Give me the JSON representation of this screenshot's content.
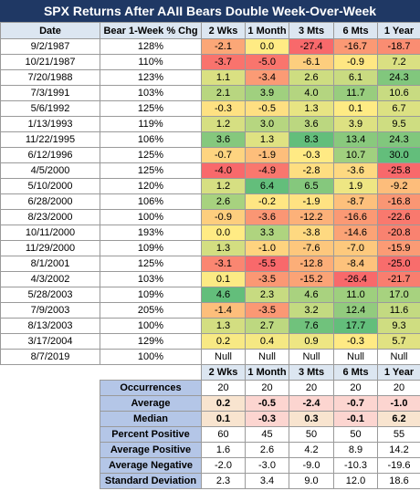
{
  "title": "SPX Returns After AAII Bears Double Week-Over-Week",
  "chart_data": {
    "type": "table",
    "title": "SPX Returns After AAII Bears Double Week-Over-Week",
    "columns": [
      "Date",
      "Bear 1-Week % Chg",
      "2 Wks",
      "1 Month",
      "3 Mts",
      "6 Mts",
      "1 Year"
    ],
    "rows": [
      {
        "date": "9/2/1987",
        "pct": "128%",
        "values": [
          "-2.1",
          "0.0",
          "-27.4",
          "-16.7",
          "-18.7"
        ]
      },
      {
        "date": "10/21/1987",
        "pct": "110%",
        "values": [
          "-3.7",
          "-5.0",
          "-6.1",
          "-0.9",
          "7.2"
        ]
      },
      {
        "date": "7/20/1988",
        "pct": "123%",
        "values": [
          "1.1",
          "-3.4",
          "2.6",
          "6.1",
          "24.3"
        ]
      },
      {
        "date": "7/3/1991",
        "pct": "103%",
        "values": [
          "2.1",
          "3.9",
          "4.0",
          "11.7",
          "10.6"
        ]
      },
      {
        "date": "5/6/1992",
        "pct": "125%",
        "values": [
          "-0.3",
          "-0.5",
          "1.3",
          "0.1",
          "6.7"
        ]
      },
      {
        "date": "1/13/1993",
        "pct": "119%",
        "values": [
          "1.2",
          "3.0",
          "3.6",
          "3.9",
          "9.5"
        ]
      },
      {
        "date": "11/22/1995",
        "pct": "106%",
        "values": [
          "3.6",
          "1.3",
          "8.3",
          "13.4",
          "24.3"
        ]
      },
      {
        "date": "6/12/1996",
        "pct": "125%",
        "values": [
          "-0.7",
          "-1.9",
          "-0.3",
          "10.7",
          "30.0"
        ]
      },
      {
        "date": "4/5/2000",
        "pct": "125%",
        "values": [
          "-4.0",
          "-4.9",
          "-2.8",
          "-3.6",
          "-25.8"
        ]
      },
      {
        "date": "5/10/2000",
        "pct": "120%",
        "values": [
          "1.2",
          "6.4",
          "6.5",
          "1.9",
          "-9.2"
        ]
      },
      {
        "date": "6/28/2000",
        "pct": "106%",
        "values": [
          "2.6",
          "-0.2",
          "-1.9",
          "-8.7",
          "-16.8"
        ]
      },
      {
        "date": "8/23/2000",
        "pct": "100%",
        "values": [
          "-0.9",
          "-3.6",
          "-12.2",
          "-16.6",
          "-22.6"
        ]
      },
      {
        "date": "10/11/2000",
        "pct": "193%",
        "values": [
          "0.0",
          "3.3",
          "-3.8",
          "-14.6",
          "-20.8"
        ]
      },
      {
        "date": "11/29/2000",
        "pct": "109%",
        "values": [
          "1.3",
          "-1.0",
          "-7.6",
          "-7.0",
          "-15.9"
        ]
      },
      {
        "date": "8/1/2001",
        "pct": "125%",
        "values": [
          "-3.1",
          "-5.5",
          "-12.8",
          "-8.4",
          "-25.0"
        ]
      },
      {
        "date": "4/3/2002",
        "pct": "103%",
        "values": [
          "0.1",
          "-3.5",
          "-15.2",
          "-26.4",
          "-21.7"
        ]
      },
      {
        "date": "5/28/2003",
        "pct": "109%",
        "values": [
          "4.6",
          "2.3",
          "4.6",
          "11.0",
          "17.0"
        ]
      },
      {
        "date": "7/9/2003",
        "pct": "205%",
        "values": [
          "-1.4",
          "-3.5",
          "3.2",
          "12.4",
          "11.6"
        ]
      },
      {
        "date": "8/13/2003",
        "pct": "100%",
        "values": [
          "1.3",
          "2.7",
          "7.6",
          "17.7",
          "9.3"
        ]
      },
      {
        "date": "3/17/2004",
        "pct": "129%",
        "values": [
          "0.2",
          "0.4",
          "0.9",
          "-0.3",
          "5.7"
        ]
      },
      {
        "date": "8/7/2019",
        "pct": "100%",
        "values": [
          "Null",
          "Null",
          "Null",
          "Null",
          "Null"
        ]
      }
    ],
    "summary_headers": [
      "2 Wks",
      "1 Month",
      "3 Mts",
      "6 Mts",
      "1 Year"
    ],
    "summary": [
      {
        "label": "Occurrences",
        "values": [
          "20",
          "20",
          "20",
          "20",
          "20"
        ],
        "bold": false,
        "colored": false
      },
      {
        "label": "Average",
        "values": [
          "0.2",
          "-0.5",
          "-2.4",
          "-0.7",
          "-1.0"
        ],
        "bold": true,
        "colored": true
      },
      {
        "label": "Median",
        "values": [
          "0.1",
          "-0.3",
          "0.3",
          "-0.1",
          "6.2"
        ],
        "bold": true,
        "colored": true
      },
      {
        "label": "Percent Positive",
        "values": [
          "60",
          "45",
          "50",
          "50",
          "55"
        ],
        "bold": false,
        "colored": false
      },
      {
        "label": "Average Positive",
        "values": [
          "1.6",
          "2.6",
          "4.2",
          "8.9",
          "14.2"
        ],
        "bold": false,
        "colored": false
      },
      {
        "label": "Average Negative",
        "values": [
          "-2.0",
          "-3.0",
          "-9.0",
          "-10.3",
          "-19.6"
        ],
        "bold": false,
        "colored": false
      },
      {
        "label": "Standard Deviation",
        "values": [
          "2.3",
          "3.4",
          "9.0",
          "12.0",
          "18.6"
        ],
        "bold": false,
        "colored": false
      }
    ]
  },
  "colors": {
    "title_bg": "#1f3864",
    "header_bg": "#dce6f1",
    "stat_label_bg": "#b4c6e7",
    "scale_low": "#f8696b",
    "scale_mid": "#ffeb84",
    "scale_high": "#63be7b"
  }
}
